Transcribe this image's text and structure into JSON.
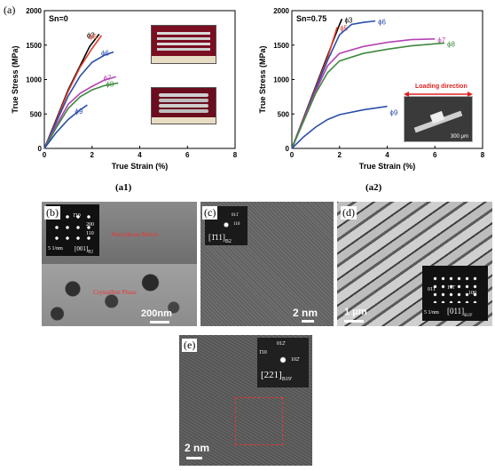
{
  "figure": {
    "main_label": "(a)",
    "panels": {
      "b": {
        "label": "(b)",
        "scale": "200nm",
        "saed_scale": "5 1/nm",
        "saed_zone": "[001]",
        "saed_zone_sub": "B2",
        "saed_spots": [
          "1̄10",
          "200",
          "110"
        ],
        "matrix_text": "Amorphous Matrix",
        "phase_text": "Crystalline Phase"
      },
      "c": {
        "label": "(c)",
        "scale": "2 nm",
        "fft_zone": "[1̄11]",
        "fft_zone_sub": "B2",
        "fft_spots": [
          "1̄01",
          "011̄",
          "110"
        ]
      },
      "d": {
        "label": "(d)",
        "scale": "1 μm",
        "saed_scale": "5 1/nm",
        "saed_zone": "[011]",
        "saed_zone_sub": "B19'",
        "saed_spots": [
          "011̄",
          "11̄1̄",
          "100"
        ]
      },
      "e": {
        "label": "(e)",
        "scale": "2 nm",
        "fft_zone": "[221]",
        "fft_zone_sub": "B19'",
        "fft_spots": [
          "1̄10",
          "012̄",
          "102̄"
        ]
      }
    }
  },
  "chart_data": [
    {
      "type": "line",
      "caption": "(a1)",
      "annotation": "Sn=0",
      "xlabel": "True Strain (%)",
      "ylabel": "True Stress (MPa)",
      "xlim": [
        0,
        8
      ],
      "ylim": [
        0,
        2000
      ],
      "xticks": [
        "0",
        "2",
        "4",
        "6",
        "8"
      ],
      "yticks": [
        "0",
        "500",
        "1000",
        "1500",
        "2000"
      ],
      "grid": false,
      "legend": "none",
      "series": [
        {
          "name": "ϕ3",
          "color": "#000000",
          "x": [
            0,
            0.5,
            1.0,
            1.5,
            1.9,
            2.3
          ],
          "y": [
            0,
            420,
            850,
            1200,
            1480,
            1660
          ]
        },
        {
          "name": "ϕ5",
          "color": "#e23c2c",
          "x": [
            0,
            0.5,
            1.0,
            1.5,
            2.0,
            2.4
          ],
          "y": [
            0,
            400,
            830,
            1180,
            1450,
            1640
          ]
        },
        {
          "name": "ϕ6",
          "color": "#2b4faa",
          "x": [
            0,
            0.5,
            1.0,
            1.5,
            2.0,
            2.5,
            2.9
          ],
          "y": [
            0,
            380,
            760,
            1050,
            1250,
            1350,
            1400
          ]
        },
        {
          "name": "ϕ7",
          "color": "#b443b4",
          "x": [
            0,
            0.5,
            1.0,
            1.5,
            2.0,
            2.5,
            3.0
          ],
          "y": [
            0,
            330,
            640,
            800,
            900,
            990,
            1040
          ]
        },
        {
          "name": "ϕ8",
          "color": "#3f8a3f",
          "x": [
            0,
            0.5,
            1.0,
            1.5,
            2.0,
            2.5,
            3.1
          ],
          "y": [
            0,
            300,
            580,
            750,
            850,
            910,
            950
          ]
        },
        {
          "name": "ϕ9",
          "color": "#2b4faa",
          "x": [
            0,
            0.5,
            1.0,
            1.5,
            1.8
          ],
          "y": [
            0,
            230,
            420,
            560,
            630
          ]
        }
      ]
    },
    {
      "type": "line",
      "caption": "(a2)",
      "annotation": "Sn=0.75",
      "inset_text": "Loading direction",
      "inset_scale": "300 μm",
      "xlabel": "True Strain (%)",
      "ylabel": "True Stress (MPa)",
      "xlim": [
        0,
        8
      ],
      "ylim": [
        0,
        2000
      ],
      "xticks": [
        "0",
        "2",
        "4",
        "6",
        "8"
      ],
      "yticks": [
        "0",
        "500",
        "1000",
        "1500",
        "2000"
      ],
      "grid": false,
      "legend": "none",
      "series": [
        {
          "name": "ϕ3",
          "color": "#000000",
          "x": [
            0,
            0.5,
            1.0,
            1.5,
            2.0,
            2.1
          ],
          "y": [
            0,
            450,
            900,
            1350,
            1800,
            1880
          ]
        },
        {
          "name": "ϕ5",
          "color": "#e23c2c",
          "x": [
            0,
            0.5,
            1.0,
            1.5,
            1.9
          ],
          "y": [
            0,
            440,
            880,
            1320,
            1760
          ]
        },
        {
          "name": "ϕ6",
          "color": "#2b4faa",
          "x": [
            0,
            0.5,
            1.0,
            1.5,
            2.0,
            2.5,
            3.0,
            3.5
          ],
          "y": [
            0,
            430,
            860,
            1280,
            1650,
            1800,
            1830,
            1850
          ]
        },
        {
          "name": "ϕ7",
          "color": "#b443b4",
          "x": [
            0,
            0.5,
            1.0,
            1.5,
            2.0,
            3.0,
            4.0,
            5.0,
            6.0
          ],
          "y": [
            0,
            420,
            830,
            1200,
            1380,
            1480,
            1540,
            1580,
            1590
          ]
        },
        {
          "name": "ϕ8",
          "color": "#3f8a3f",
          "x": [
            0,
            0.5,
            1.0,
            1.5,
            2.0,
            3.0,
            4.0,
            5.0,
            6.4
          ],
          "y": [
            0,
            400,
            800,
            1100,
            1270,
            1380,
            1440,
            1490,
            1530
          ]
        },
        {
          "name": "ϕ9",
          "color": "#2b4faa",
          "x": [
            0,
            0.5,
            1.0,
            1.5,
            2.0,
            3.0,
            4.0
          ],
          "y": [
            0,
            170,
            310,
            420,
            490,
            560,
            610
          ]
        }
      ]
    }
  ]
}
